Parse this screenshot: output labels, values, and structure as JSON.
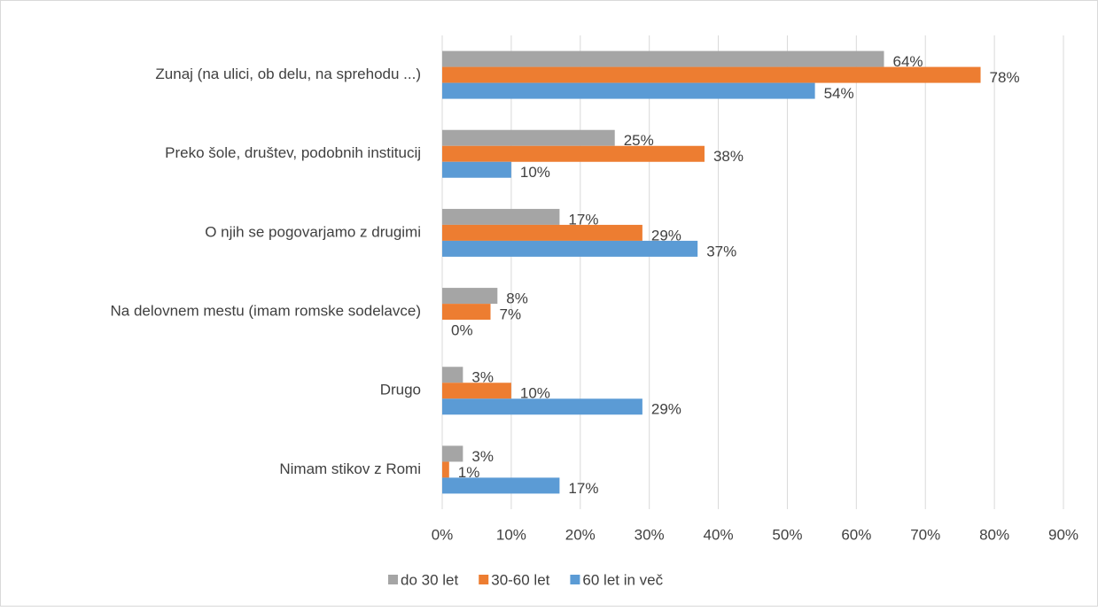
{
  "chart_data": {
    "type": "hbar",
    "categories": [
      "Zunaj (na ulici, ob delu, na sprehodu ...)",
      "Preko šole, društev, podobnih institucij",
      "O njih se pogovarjamo z drugimi",
      "Na delovnem mestu (imam romske sodelavce)",
      "Drugo",
      "Nimam stikov z Romi"
    ],
    "series": [
      {
        "name": "do 30 let",
        "color": "#a5a5a5",
        "values": [
          64,
          25,
          17,
          8,
          3,
          3
        ],
        "value_labels": [
          "64%",
          "25%",
          "17%",
          "8%",
          "3%",
          "3%"
        ]
      },
      {
        "name": "30-60 let",
        "color": "#ed7d31",
        "values": [
          78,
          38,
          29,
          7,
          10,
          1
        ],
        "value_labels": [
          "78%",
          "38%",
          "29%",
          "7%",
          "10%",
          "1%"
        ]
      },
      {
        "name": "60 let in več",
        "color": "#5b9bd5",
        "values": [
          54,
          10,
          37,
          0,
          29,
          17
        ],
        "value_labels": [
          "54%",
          "10%",
          "37%",
          "0%",
          "29%",
          "17%"
        ]
      }
    ],
    "xlim": [
      0,
      90
    ],
    "xticks": [
      {
        "value": 0,
        "label": "0%"
      },
      {
        "value": 10,
        "label": "10%"
      },
      {
        "value": 20,
        "label": "20%"
      },
      {
        "value": 30,
        "label": "30%"
      },
      {
        "value": 40,
        "label": "40%"
      },
      {
        "value": 50,
        "label": "50%"
      },
      {
        "value": 60,
        "label": "60%"
      },
      {
        "value": 70,
        "label": "70%"
      },
      {
        "value": 80,
        "label": "80%"
      },
      {
        "value": 90,
        "label": "90%"
      }
    ],
    "grid": true,
    "legend": "bottom"
  }
}
